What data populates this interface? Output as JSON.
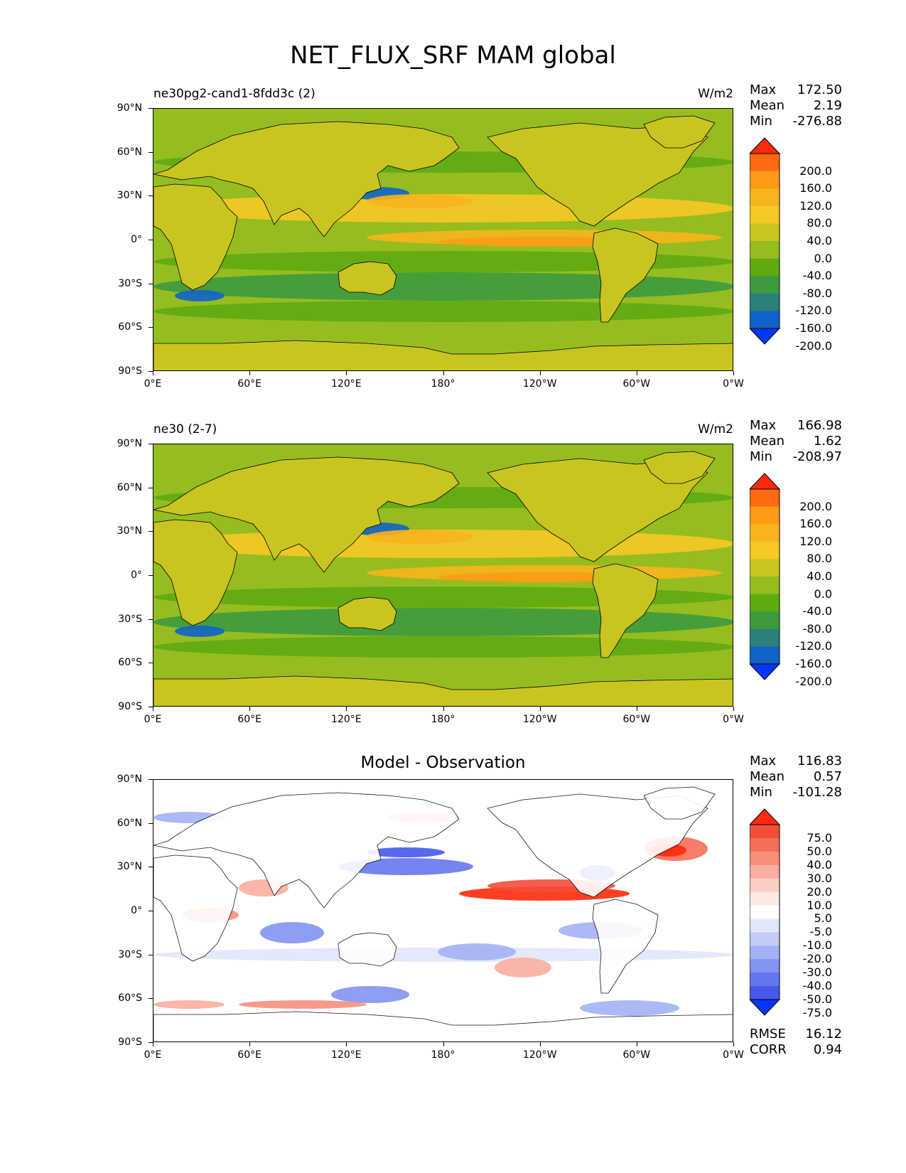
{
  "title": "NET_FLUX_SRF MAM global",
  "chart_data": [
    {
      "type": "heatmap",
      "left_title": "ne30pg2-cand1-8fdd3c (2)",
      "right_title": "W/m2",
      "stats": {
        "max_label": "Max",
        "max": "172.50",
        "mean_label": "Mean",
        "mean": "2.19",
        "min_label": "Min",
        "min": "-276.88"
      },
      "xticks": [
        "0°E",
        "60°E",
        "120°E",
        "180°",
        "120°W",
        "60°W",
        "0°W"
      ],
      "yticks": [
        "90°N",
        "60°N",
        "30°N",
        "0°",
        "30°S",
        "60°S",
        "90°S"
      ],
      "xlim": [
        0,
        360
      ],
      "ylim": [
        -90,
        90
      ],
      "colorbar": {
        "levels": [
          "200.0",
          "160.0",
          "120.0",
          "80.0",
          "40.0",
          "0.0",
          "-40.0",
          "-80.0",
          "-120.0",
          "-160.0",
          "-200.0"
        ],
        "colors": [
          "#fe2a0a",
          "#fd6a10",
          "#fb9b17",
          "#f7b41c",
          "#f6c824",
          "#c9c520",
          "#95bd20",
          "#5eaa13",
          "#3d9a3e",
          "#2b8179",
          "#0f63c9",
          "#0536f8"
        ],
        "extend": "both"
      }
    },
    {
      "type": "heatmap",
      "left_title": "ne30 (2-7)",
      "right_title": "W/m2",
      "stats": {
        "max_label": "Max",
        "max": "166.98",
        "mean_label": "Mean",
        "mean": "1.62",
        "min_label": "Min",
        "min": "-208.97"
      },
      "xticks": [
        "0°E",
        "60°E",
        "120°E",
        "180°",
        "120°W",
        "60°W",
        "0°W"
      ],
      "yticks": [
        "90°N",
        "60°N",
        "30°N",
        "0°",
        "30°S",
        "60°S",
        "90°S"
      ],
      "xlim": [
        0,
        360
      ],
      "ylim": [
        -90,
        90
      ],
      "colorbar": {
        "levels": [
          "200.0",
          "160.0",
          "120.0",
          "80.0",
          "40.0",
          "0.0",
          "-40.0",
          "-80.0",
          "-120.0",
          "-160.0",
          "-200.0"
        ],
        "colors": [
          "#fe2a0a",
          "#fd6a10",
          "#fb9b17",
          "#f7b41c",
          "#f6c824",
          "#c9c520",
          "#95bd20",
          "#5eaa13",
          "#3d9a3e",
          "#2b8179",
          "#0f63c9",
          "#0536f8"
        ],
        "extend": "both"
      }
    },
    {
      "type": "heatmap",
      "center_title": "Model - Observation",
      "stats": {
        "max_label": "Max",
        "max": "116.83",
        "mean_label": "Mean",
        "mean": "0.57",
        "min_label": "Min",
        "min": "-101.28"
      },
      "xticks": [
        "0°E",
        "60°E",
        "120°E",
        "180°",
        "120°W",
        "60°W",
        "0°W"
      ],
      "yticks": [
        "90°N",
        "60°N",
        "30°N",
        "0°",
        "30°S",
        "60°S",
        "90°S"
      ],
      "xlim": [
        0,
        360
      ],
      "ylim": [
        -90,
        90
      ],
      "colorbar": {
        "levels": [
          "75.0",
          "50.0",
          "40.0",
          "30.0",
          "20.0",
          "10.0",
          "5.0",
          "-5.0",
          "-10.0",
          "-20.0",
          "-30.0",
          "-40.0",
          "-50.0",
          "-75.0"
        ],
        "colors": [
          "#fe2a0a",
          "#f44d38",
          "#f66e5a",
          "#f78f7c",
          "#f9ae9f",
          "#fbcec4",
          "#fde8e3",
          "#ffffff",
          "#e1e6fb",
          "#c3ccf8",
          "#a4b1f4",
          "#8394f1",
          "#6577ee",
          "#4659ec",
          "#0536f8"
        ],
        "extend": "both"
      },
      "footer": {
        "rmse_label": "RMSE",
        "rmse": "16.12",
        "corr_label": "CORR",
        "corr": "0.94"
      }
    }
  ]
}
